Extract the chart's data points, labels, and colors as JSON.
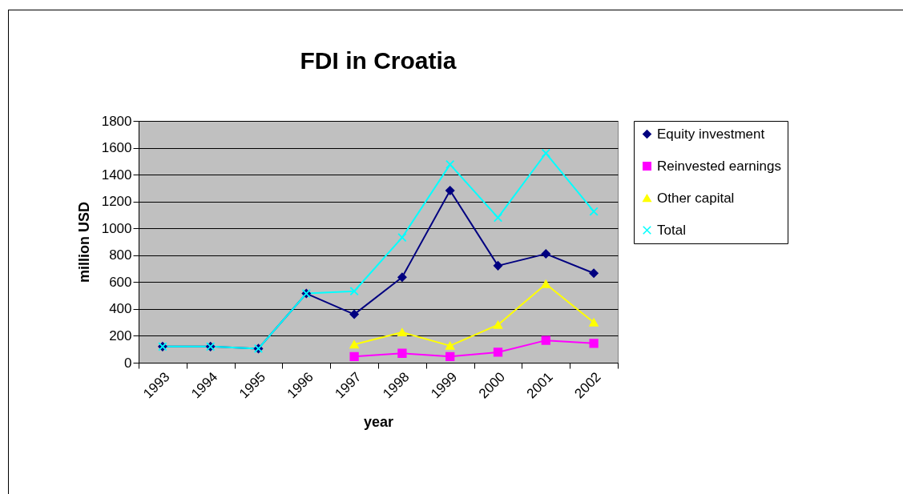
{
  "chart_data": {
    "type": "line",
    "title": "FDI in Croatia",
    "xlabel": "year",
    "ylabel": "million USD",
    "categories": [
      "1993",
      "1994",
      "1995",
      "1996",
      "1997",
      "1998",
      "1999",
      "2000",
      "2001",
      "2002"
    ],
    "series": [
      {
        "name": "Equity investment",
        "color": "#000080",
        "marker": "diamond",
        "values": [
          120,
          120,
          105,
          515,
          360,
          636,
          1282,
          722,
          810,
          666
        ]
      },
      {
        "name": "Reinvested earnings",
        "color": "#ff00ff",
        "marker": "square",
        "values": [
          null,
          null,
          null,
          null,
          46,
          70,
          46,
          78,
          166,
          144
        ]
      },
      {
        "name": "Other capital",
        "color": "#ffff00",
        "marker": "triangle",
        "values": [
          null,
          null,
          null,
          null,
          136,
          226,
          126,
          282,
          586,
          300
        ]
      },
      {
        "name": "Total",
        "color": "#00ffff",
        "marker": "cross",
        "values": [
          120,
          120,
          105,
          515,
          532,
          932,
          1476,
          1080,
          1560,
          1126
        ]
      }
    ],
    "ylim": [
      0,
      1800
    ],
    "yticks": [
      0,
      200,
      400,
      600,
      800,
      1000,
      1200,
      1400,
      1600,
      1800
    ],
    "grid": "y",
    "legend": "right"
  }
}
